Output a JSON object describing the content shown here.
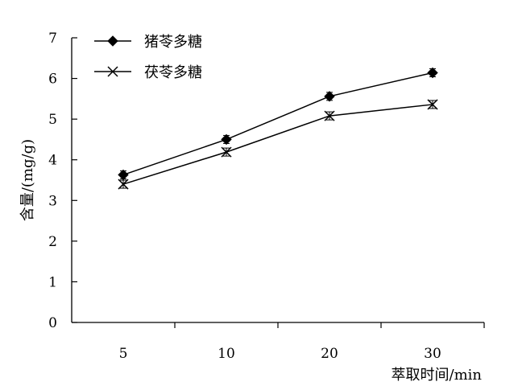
{
  "chart_data": {
    "type": "line",
    "categories": [
      "5",
      "10",
      "20",
      "30"
    ],
    "series": [
      {
        "name": "猪苓多糖",
        "marker": "diamond",
        "values": [
          3.63,
          4.5,
          5.56,
          6.14
        ]
      },
      {
        "name": "茯苓多糖",
        "marker": "x",
        "values": [
          3.4,
          4.19,
          5.08,
          5.36
        ]
      }
    ],
    "title": "",
    "xlabel": "萃取时间/min",
    "ylabel": "含量/(mg/g)",
    "ylim": [
      0,
      7
    ],
    "yticks": [
      "0",
      "1",
      "2",
      "3",
      "4",
      "5",
      "6",
      "7"
    ],
    "grid": false,
    "legend_position": "top-left",
    "colors": {
      "line": "#000000",
      "marker": "#000000"
    }
  }
}
